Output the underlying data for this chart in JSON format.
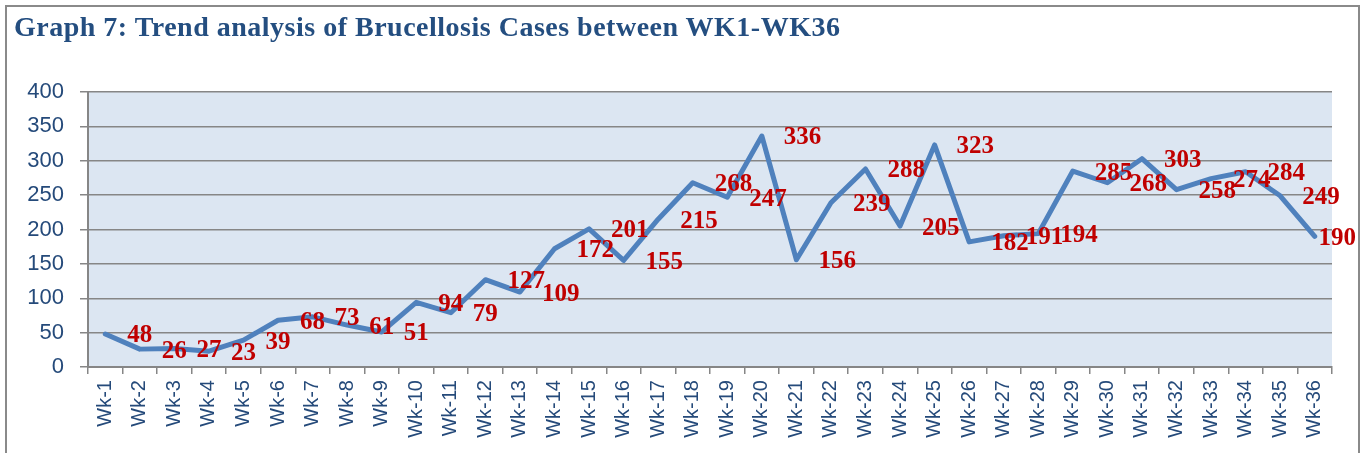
{
  "chart_data": {
    "type": "line",
    "title": "Graph 7: Trend analysis of Brucellosis Cases between WK1-WK36",
    "categories": [
      "Wk-1",
      "Wk-2",
      "Wk-3",
      "Wk-4",
      "Wk-5",
      "Wk-6",
      "Wk-7",
      "Wk-8",
      "Wk-9",
      "Wk-10",
      "Wk-11",
      "Wk-12",
      "Wk-13",
      "Wk-14",
      "Wk-15",
      "Wk-16",
      "Wk-17",
      "Wk-18",
      "Wk-19",
      "Wk-20",
      "Wk-21",
      "Wk-22",
      "Wk-23",
      "Wk-24",
      "Wk-25",
      "Wk-26",
      "Wk-27",
      "Wk-28",
      "Wk-29",
      "Wk-30",
      "Wk-31",
      "Wk-32",
      "Wk-33",
      "Wk-34",
      "Wk-35",
      "Wk-36"
    ],
    "series": [
      {
        "color": "#4f81bd",
        "values": [
          48,
          26,
          27,
          23,
          39,
          68,
          73,
          61,
          51,
          94,
          79,
          127,
          109,
          172,
          201,
          155,
          215,
          268,
          247,
          336,
          156,
          239,
          288,
          205,
          323,
          182,
          191,
          194,
          285,
          268,
          303,
          258,
          274,
          284,
          249,
          190
        ]
      }
    ],
    "ylim": [
      0,
      400
    ],
    "yticks": [
      0,
      50,
      100,
      150,
      200,
      250,
      300,
      350,
      400
    ],
    "grid": "y",
    "marker": "none",
    "line_style": "solid",
    "data_labels": true
  }
}
